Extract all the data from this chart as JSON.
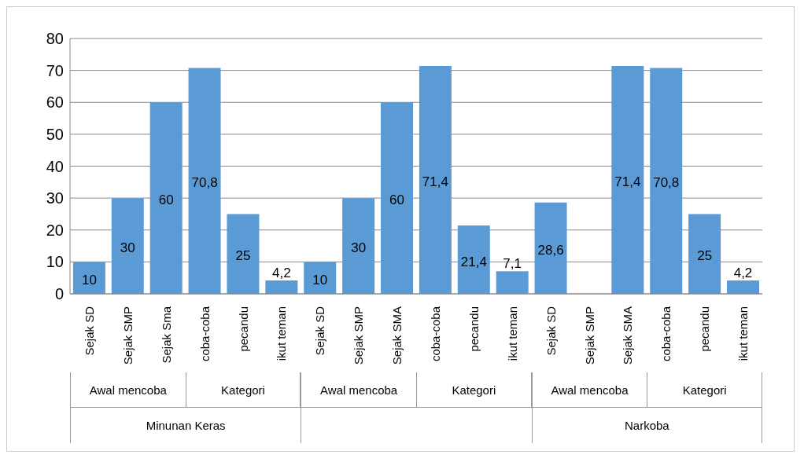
{
  "chart_data": {
    "type": "bar",
    "categories": [
      "Sejak SD",
      "Sejak SMP",
      "Sejak Sma",
      "coba-coba",
      "pecandu",
      "ikut teman",
      "Sejak SD",
      "Sejak SMP",
      "Sejak SMA",
      "coba-coba",
      "pecandu",
      "ikut teman",
      "Sejak SD",
      "Sejak SMP",
      "Sejak SMA",
      "coba-coba",
      "pecandu",
      "ikut teman"
    ],
    "values": [
      10,
      30,
      60,
      70.8,
      25,
      4.2,
      10,
      30,
      60,
      71.4,
      21.4,
      7.1,
      28.6,
      null,
      71.4,
      70.8,
      25,
      4.2
    ],
    "value_labels": [
      "10",
      "30",
      "60",
      "70,8",
      "25",
      "4,2",
      "10",
      "30",
      "60",
      "71,4",
      "21,4",
      "7,1",
      "28,6",
      null,
      "71,4",
      "70,8",
      "25",
      "4,2"
    ],
    "color": "#5b9bd5",
    "ylim": [
      0,
      80
    ],
    "yticks": [
      0,
      10,
      20,
      30,
      40,
      50,
      60,
      70,
      80
    ],
    "grid": "y",
    "annotations": [
      "Awal mencoba",
      "Kategori",
      "Awal mencoba",
      "Kategori",
      "Awal mencoba",
      "Kategori",
      "Minunan Keras",
      "Narkoba"
    ]
  }
}
